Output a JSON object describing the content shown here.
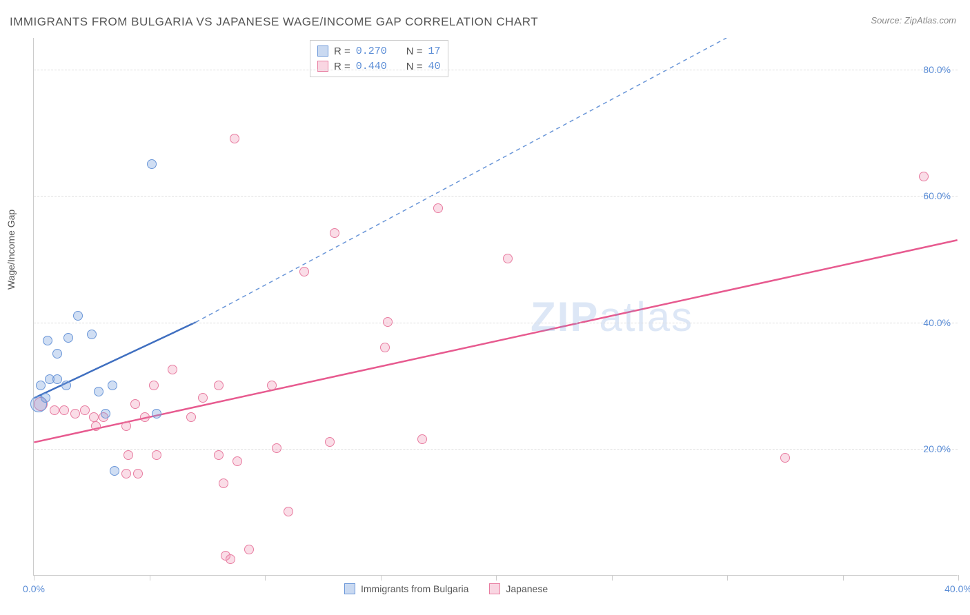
{
  "title": "IMMIGRANTS FROM BULGARIA VS JAPANESE WAGE/INCOME GAP CORRELATION CHART",
  "source": "Source: ZipAtlas.com",
  "y_label": "Wage/Income Gap",
  "watermark_a": "ZIP",
  "watermark_b": "atlas",
  "chart": {
    "type": "scatter",
    "xlim": [
      0,
      40
    ],
    "ylim": [
      0,
      85
    ],
    "x_ticks": [
      0,
      5,
      10,
      15,
      20,
      25,
      30,
      35,
      40
    ],
    "x_tick_labels": [
      "0.0%",
      "",
      "",
      "",
      "",
      "",
      "",
      "",
      "40.0%"
    ],
    "y_ticks": [
      20,
      40,
      60,
      80
    ],
    "y_tick_labels": [
      "20.0%",
      "40.0%",
      "60.0%",
      "80.0%"
    ],
    "background_color": "#ffffff",
    "grid_color": "#dddddd",
    "axis_color": "#cccccc",
    "tick_label_color": "#5b8dd6",
    "label_fontsize": 14,
    "title_fontsize": 17,
    "marker_size": 14,
    "large_marker_size": 24
  },
  "series": [
    {
      "name": "Immigrants from Bulgaria",
      "color_fill": "rgba(120,160,220,0.35)",
      "color_stroke": "#6a96d8",
      "trend_color": "#3f6fc0",
      "trend_dashed_color": "#6a96d8",
      "R": "0.270",
      "N": "17",
      "trend_solid": {
        "x1": 0,
        "y1": 28,
        "x2": 7,
        "y2": 40
      },
      "trend_dashed": {
        "x1": 7,
        "y1": 40,
        "x2": 30,
        "y2": 85
      },
      "points": [
        {
          "x": 0.2,
          "y": 27,
          "r": 24
        },
        {
          "x": 0.3,
          "y": 30
        },
        {
          "x": 0.7,
          "y": 31
        },
        {
          "x": 1.0,
          "y": 35
        },
        {
          "x": 0.6,
          "y": 37
        },
        {
          "x": 1.5,
          "y": 37.5
        },
        {
          "x": 1.9,
          "y": 41
        },
        {
          "x": 2.5,
          "y": 38
        },
        {
          "x": 1.4,
          "y": 30
        },
        {
          "x": 2.8,
          "y": 29
        },
        {
          "x": 3.1,
          "y": 25.5
        },
        {
          "x": 3.4,
          "y": 30
        },
        {
          "x": 5.3,
          "y": 25.5
        },
        {
          "x": 3.5,
          "y": 16.5
        },
        {
          "x": 5.1,
          "y": 65
        },
        {
          "x": 0.5,
          "y": 28
        },
        {
          "x": 1.0,
          "y": 31
        }
      ]
    },
    {
      "name": "Japanese",
      "color_fill": "rgba(235,120,160,0.25)",
      "color_stroke": "#e87ca0",
      "trend_color": "#e75a8f",
      "R": "0.440",
      "N": "40",
      "trend_solid": {
        "x1": 0,
        "y1": 21,
        "x2": 40,
        "y2": 53
      },
      "points": [
        {
          "x": 0.3,
          "y": 27,
          "r": 20
        },
        {
          "x": 0.9,
          "y": 26
        },
        {
          "x": 1.3,
          "y": 26
        },
        {
          "x": 1.8,
          "y": 25.5
        },
        {
          "x": 2.2,
          "y": 26
        },
        {
          "x": 2.6,
          "y": 25
        },
        {
          "x": 3.0,
          "y": 25
        },
        {
          "x": 2.7,
          "y": 23.5
        },
        {
          "x": 4.0,
          "y": 23.5
        },
        {
          "x": 4.4,
          "y": 27
        },
        {
          "x": 4.8,
          "y": 25
        },
        {
          "x": 5.2,
          "y": 30
        },
        {
          "x": 4.0,
          "y": 16
        },
        {
          "x": 4.1,
          "y": 19
        },
        {
          "x": 4.5,
          "y": 16
        },
        {
          "x": 5.3,
          "y": 19
        },
        {
          "x": 6.0,
          "y": 32.5
        },
        {
          "x": 6.8,
          "y": 25
        },
        {
          "x": 7.3,
          "y": 28
        },
        {
          "x": 8.0,
          "y": 19
        },
        {
          "x": 8.0,
          "y": 30
        },
        {
          "x": 8.2,
          "y": 14.5
        },
        {
          "x": 8.3,
          "y": 3
        },
        {
          "x": 8.5,
          "y": 2.5
        },
        {
          "x": 8.8,
          "y": 18
        },
        {
          "x": 9.3,
          "y": 4
        },
        {
          "x": 10.3,
          "y": 30
        },
        {
          "x": 10.5,
          "y": 20
        },
        {
          "x": 11.0,
          "y": 10
        },
        {
          "x": 11.7,
          "y": 48
        },
        {
          "x": 12.8,
          "y": 21
        },
        {
          "x": 13.0,
          "y": 54
        },
        {
          "x": 15.2,
          "y": 36
        },
        {
          "x": 15.3,
          "y": 40
        },
        {
          "x": 16.8,
          "y": 21.5
        },
        {
          "x": 17.5,
          "y": 58
        },
        {
          "x": 20.5,
          "y": 50
        },
        {
          "x": 32.5,
          "y": 18.5
        },
        {
          "x": 38.5,
          "y": 63
        },
        {
          "x": 8.7,
          "y": 69
        }
      ]
    }
  ],
  "legend_top": {
    "R_label": "R =",
    "N_label": "N ="
  },
  "legend_bottom": {
    "label_a": "Immigrants from Bulgaria",
    "label_b": "Japanese"
  }
}
